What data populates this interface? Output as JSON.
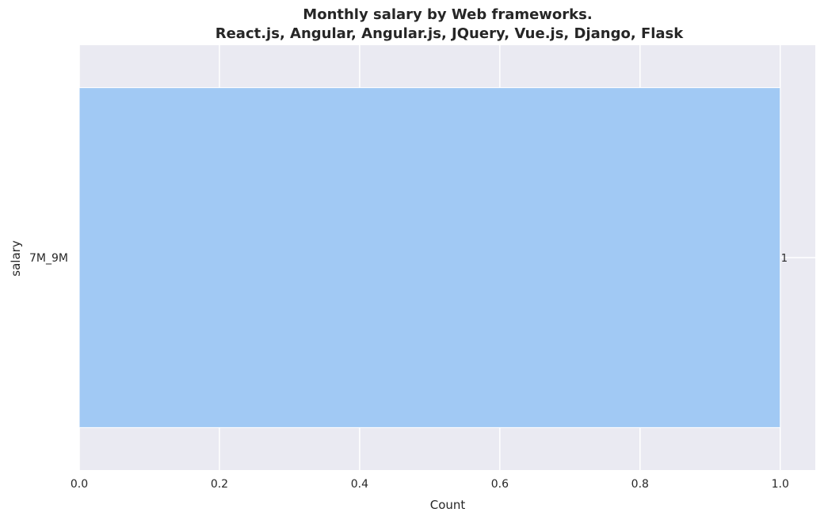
{
  "chart_data": {
    "type": "bar",
    "orientation": "horizontal",
    "title": "Monthly salary by Web frameworks.",
    "subtitle": "React.js, Angular, Angular.js, JQuery, Vue.js, Django, Flask",
    "xlabel": "Count",
    "ylabel": "salary",
    "categories": [
      "7M_9M"
    ],
    "values": [
      1
    ],
    "data_labels": [
      "1"
    ],
    "xlim": [
      0,
      1.05
    ],
    "xticks": [
      0.0,
      0.2,
      0.4,
      0.6,
      0.8,
      1.0
    ],
    "xtick_labels": [
      "0.0",
      "0.2",
      "0.4",
      "0.6",
      "0.8",
      "1.0"
    ],
    "grid": true,
    "colors": {
      "plot_background": "#eaeaf2",
      "grid": "#ffffff",
      "bar": "#a1c9f4",
      "text": "#262626"
    }
  }
}
